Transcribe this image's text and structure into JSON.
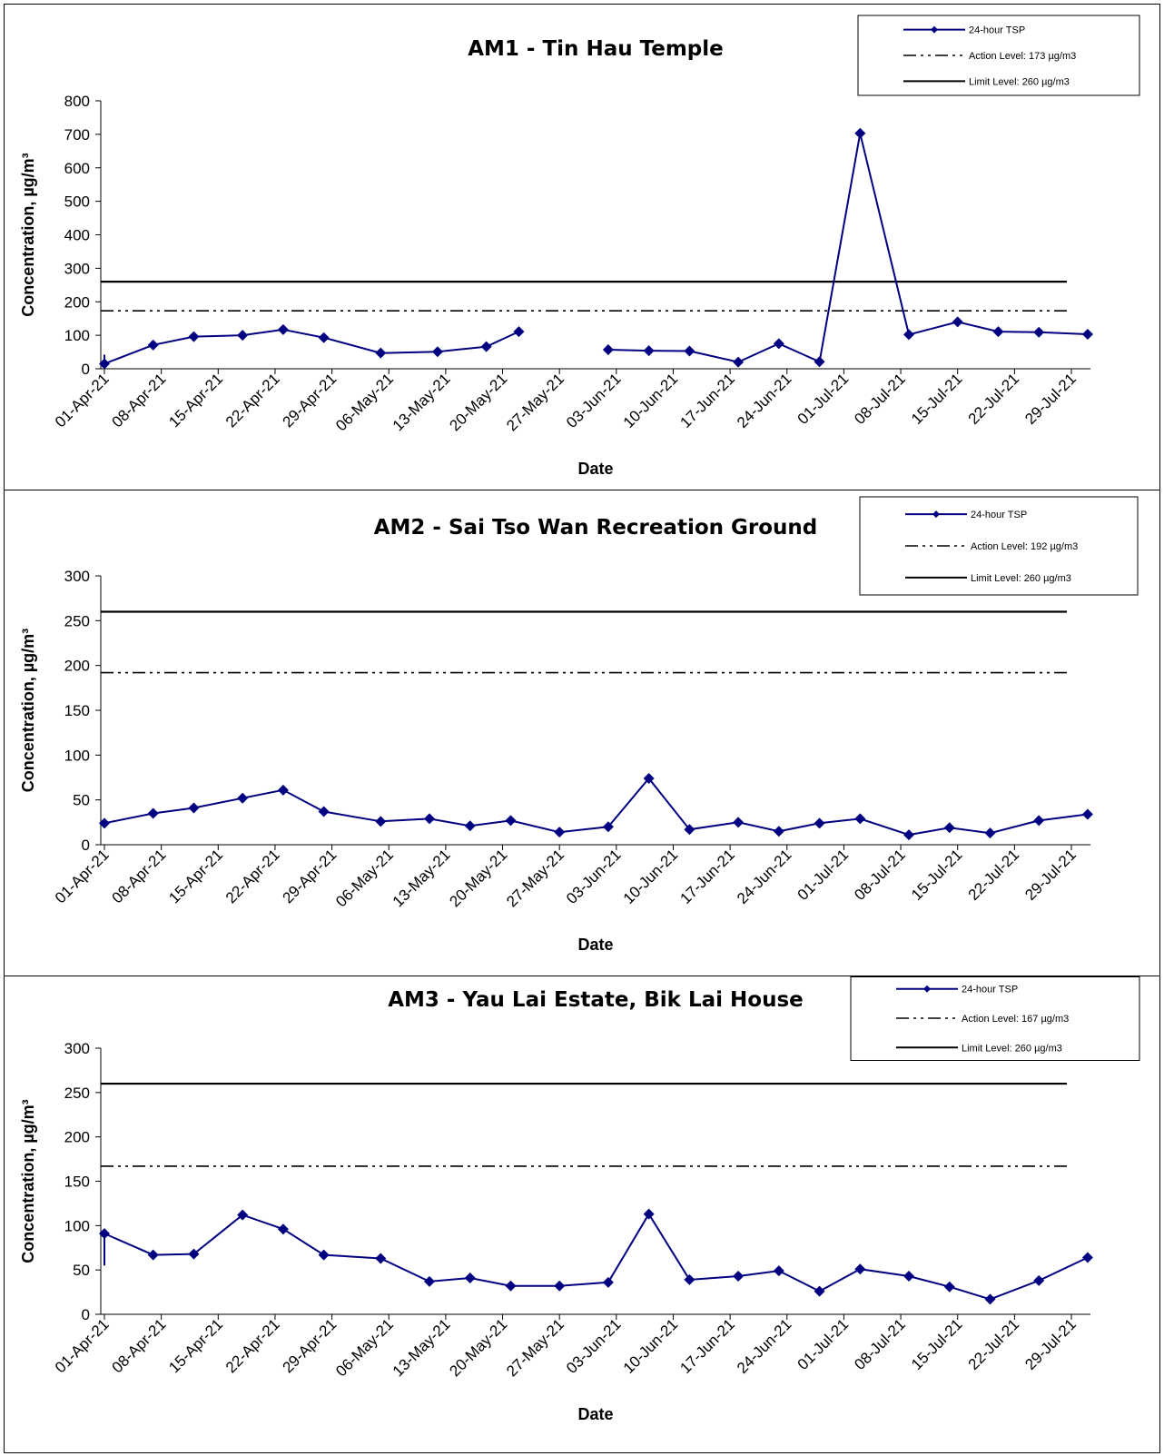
{
  "colors": {
    "series": "#000080",
    "threshold": "#000000",
    "axis": "#000000"
  },
  "chart_data": [
    {
      "type": "line",
      "title": "AM1 - Tin Hau Temple",
      "xlabel": "Date",
      "ylabel": "Concentration, µg/m³",
      "ylim": [
        0,
        800
      ],
      "yticks": [
        0,
        100,
        200,
        300,
        400,
        500,
        600,
        700,
        800
      ],
      "xlim": [
        "2021-04-01",
        "2021-07-29"
      ],
      "xticks": [
        "01-Apr-21",
        "08-Apr-21",
        "15-Apr-21",
        "22-Apr-21",
        "29-Apr-21",
        "06-May-21",
        "13-May-21",
        "20-May-21",
        "27-May-21",
        "03-Jun-21",
        "10-Jun-21",
        "17-Jun-21",
        "24-Jun-21",
        "01-Jul-21",
        "08-Jul-21",
        "15-Jul-21",
        "22-Jul-21",
        "29-Jul-21"
      ],
      "legend_position": "top-right",
      "legend": [
        "24-hour TSP",
        "Action Level: 173 µg/m3",
        "Limit Level: 260 µg/m3"
      ],
      "action_level": 173,
      "limit_level": 260,
      "series": [
        {
          "name": "24-hour TSP",
          "segments": [
            [
              {
                "x": "2021-04-01",
                "y": 42
              },
              {
                "x": "2021-04-01",
                "y": 15
              },
              {
                "x": "2021-04-07",
                "y": 71
              },
              {
                "x": "2021-04-12",
                "y": 96
              },
              {
                "x": "2021-04-18",
                "y": 100
              },
              {
                "x": "2021-04-23",
                "y": 117
              },
              {
                "x": "2021-04-28",
                "y": 93
              },
              {
                "x": "2021-05-05",
                "y": 47
              },
              {
                "x": "2021-05-12",
                "y": 51
              },
              {
                "x": "2021-05-18",
                "y": 66
              },
              {
                "x": "2021-05-22",
                "y": 111
              }
            ],
            [
              {
                "x": "2021-06-02",
                "y": 57
              },
              {
                "x": "2021-06-07",
                "y": 54
              },
              {
                "x": "2021-06-12",
                "y": 53
              },
              {
                "x": "2021-06-18",
                "y": 20
              },
              {
                "x": "2021-06-23",
                "y": 75
              },
              {
                "x": "2021-06-28",
                "y": 21
              },
              {
                "x": "2021-07-03",
                "y": 703
              },
              {
                "x": "2021-07-09",
                "y": 102
              },
              {
                "x": "2021-07-15",
                "y": 140
              },
              {
                "x": "2021-07-20",
                "y": 111
              },
              {
                "x": "2021-07-25",
                "y": 109
              },
              {
                "x": "2021-07-31",
                "y": 103
              }
            ]
          ]
        }
      ]
    },
    {
      "type": "line",
      "title": "AM2 - Sai Tso Wan Recreation Ground",
      "xlabel": "Date",
      "ylabel": "Concentration, µg/m³",
      "ylim": [
        0,
        300
      ],
      "yticks": [
        0,
        50,
        100,
        150,
        200,
        250,
        300
      ],
      "xlim": [
        "2021-04-01",
        "2021-07-29"
      ],
      "xticks": [
        "01-Apr-21",
        "08-Apr-21",
        "15-Apr-21",
        "22-Apr-21",
        "29-Apr-21",
        "06-May-21",
        "13-May-21",
        "20-May-21",
        "27-May-21",
        "03-Jun-21",
        "10-Jun-21",
        "17-Jun-21",
        "24-Jun-21",
        "01-Jul-21",
        "08-Jul-21",
        "15-Jul-21",
        "22-Jul-21",
        "29-Jul-21"
      ],
      "legend_position": "top-right",
      "legend": [
        "24-hour TSP",
        "Action Level: 192 µg/m3",
        "Limit Level: 260 µg/m3"
      ],
      "action_level": 192,
      "limit_level": 260,
      "series": [
        {
          "name": "24-hour TSP",
          "segments": [
            [
              {
                "x": "2021-04-01",
                "y": 24
              },
              {
                "x": "2021-04-07",
                "y": 35
              },
              {
                "x": "2021-04-12",
                "y": 41
              },
              {
                "x": "2021-04-18",
                "y": 52
              },
              {
                "x": "2021-04-23",
                "y": 61
              },
              {
                "x": "2021-04-28",
                "y": 37
              },
              {
                "x": "2021-05-05",
                "y": 26
              },
              {
                "x": "2021-05-11",
                "y": 29
              },
              {
                "x": "2021-05-16",
                "y": 21
              },
              {
                "x": "2021-05-21",
                "y": 27
              },
              {
                "x": "2021-05-27",
                "y": 14
              },
              {
                "x": "2021-06-02",
                "y": 20
              },
              {
                "x": "2021-06-07",
                "y": 74
              },
              {
                "x": "2021-06-12",
                "y": 17
              },
              {
                "x": "2021-06-18",
                "y": 25
              },
              {
                "x": "2021-06-23",
                "y": 15
              },
              {
                "x": "2021-06-28",
                "y": 24
              },
              {
                "x": "2021-07-03",
                "y": 29
              },
              {
                "x": "2021-07-09",
                "y": 11
              },
              {
                "x": "2021-07-14",
                "y": 19
              },
              {
                "x": "2021-07-19",
                "y": 13
              },
              {
                "x": "2021-07-25",
                "y": 27
              },
              {
                "x": "2021-07-31",
                "y": 34
              }
            ]
          ]
        }
      ]
    },
    {
      "type": "line",
      "title": "AM3 - Yau Lai Estate, Bik Lai House",
      "xlabel": "Date",
      "ylabel": "Concentration, µg/m³",
      "ylim": [
        0,
        300
      ],
      "yticks": [
        0,
        50,
        100,
        150,
        200,
        250,
        300
      ],
      "xlim": [
        "2021-04-01",
        "2021-07-29"
      ],
      "xticks": [
        "01-Apr-21",
        "08-Apr-21",
        "15-Apr-21",
        "22-Apr-21",
        "29-Apr-21",
        "06-May-21",
        "13-May-21",
        "20-May-21",
        "27-May-21",
        "03-Jun-21",
        "10-Jun-21",
        "17-Jun-21",
        "24-Jun-21",
        "01-Jul-21",
        "08-Jul-21",
        "15-Jul-21",
        "22-Jul-21",
        "29-Jul-21"
      ],
      "legend_position": "top-right",
      "legend": [
        "24-hour TSP",
        "Action Level: 167 µg/m3",
        "Limit Level: 260 µg/m3"
      ],
      "action_level": 167,
      "limit_level": 260,
      "series": [
        {
          "name": "24-hour TSP",
          "segments": [
            [
              {
                "x": "2021-04-01",
                "y": 55
              },
              {
                "x": "2021-04-01",
                "y": 91
              },
              {
                "x": "2021-04-07",
                "y": 67
              },
              {
                "x": "2021-04-12",
                "y": 68
              },
              {
                "x": "2021-04-18",
                "y": 112
              },
              {
                "x": "2021-04-23",
                "y": 96
              },
              {
                "x": "2021-04-28",
                "y": 67
              },
              {
                "x": "2021-05-05",
                "y": 63
              },
              {
                "x": "2021-05-11",
                "y": 37
              },
              {
                "x": "2021-05-16",
                "y": 41
              },
              {
                "x": "2021-05-21",
                "y": 32
              },
              {
                "x": "2021-05-27",
                "y": 32
              },
              {
                "x": "2021-06-02",
                "y": 36
              },
              {
                "x": "2021-06-07",
                "y": 113
              },
              {
                "x": "2021-06-12",
                "y": 39
              },
              {
                "x": "2021-06-18",
                "y": 43
              },
              {
                "x": "2021-06-23",
                "y": 49
              },
              {
                "x": "2021-06-28",
                "y": 26
              },
              {
                "x": "2021-07-03",
                "y": 51
              },
              {
                "x": "2021-07-09",
                "y": 43
              },
              {
                "x": "2021-07-14",
                "y": 31
              },
              {
                "x": "2021-07-19",
                "y": 17
              },
              {
                "x": "2021-07-25",
                "y": 38
              },
              {
                "x": "2021-07-31",
                "y": 64
              }
            ]
          ]
        }
      ]
    }
  ]
}
